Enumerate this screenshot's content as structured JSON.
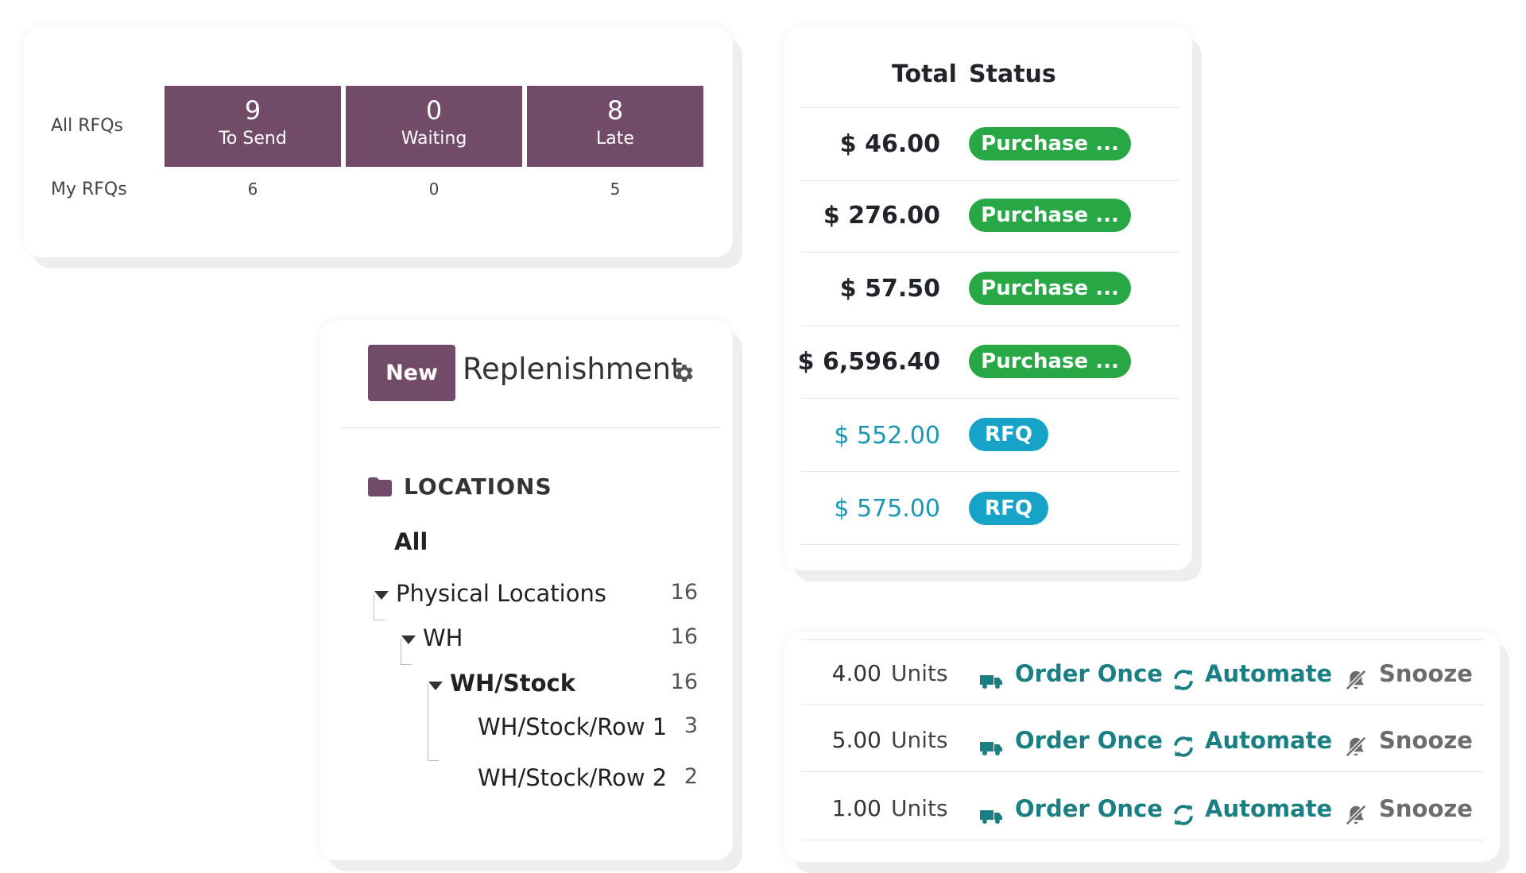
{
  "rfq": {
    "row_all": "All RFQs",
    "row_my": "My RFQs",
    "tiles": [
      {
        "value": "9",
        "label": "To Send"
      },
      {
        "value": "0",
        "label": "Waiting"
      },
      {
        "value": "8",
        "label": "Late"
      }
    ],
    "my": [
      "6",
      "0",
      "5"
    ],
    "accent_color": "#714b67"
  },
  "purchases": {
    "header_total": "Total",
    "header_status": "Status",
    "rows": [
      {
        "total": "$ 46.00",
        "status": "Purchase ...",
        "status_type": "purchase"
      },
      {
        "total": "$ 276.00",
        "status": "Purchase ...",
        "status_type": "purchase"
      },
      {
        "total": "$ 57.50",
        "status": "Purchase ...",
        "status_type": "purchase"
      },
      {
        "total": "$ 6,596.40",
        "status": "Purchase ...",
        "status_type": "purchase"
      },
      {
        "total": "$ 552.00",
        "status": "RFQ",
        "status_type": "rfq"
      },
      {
        "total": "$ 575.00",
        "status": "RFQ",
        "status_type": "rfq"
      }
    ],
    "colors": {
      "purchase": "#28a745",
      "rfq": "#17a2c8"
    }
  },
  "replenishment": {
    "new_label": "New",
    "title": "Replenishment",
    "settings_icon": "gear-icon",
    "locations_header": "LOCATIONS",
    "locations_icon": "folder-icon",
    "all_label": "All",
    "tree": [
      {
        "label": "Physical Locations",
        "count": "16"
      },
      {
        "label": "WH",
        "count": "16"
      },
      {
        "label": "WH/Stock",
        "count": "16"
      },
      {
        "label": "WH/Stock/Row 1",
        "count": "3"
      },
      {
        "label": "WH/Stock/Row 2",
        "count": "2"
      }
    ]
  },
  "actions": {
    "rows": [
      {
        "qty": "4.00",
        "unit": "Units"
      },
      {
        "qty": "5.00",
        "unit": "Units"
      },
      {
        "qty": "1.00",
        "unit": "Units"
      }
    ],
    "order_once": "Order Once",
    "automate": "Automate",
    "snooze": "Snooze",
    "icons": {
      "order_once": "truck-icon",
      "automate": "refresh-icon",
      "snooze": "bell-slash-icon"
    },
    "link_color": "#1a7f83"
  }
}
